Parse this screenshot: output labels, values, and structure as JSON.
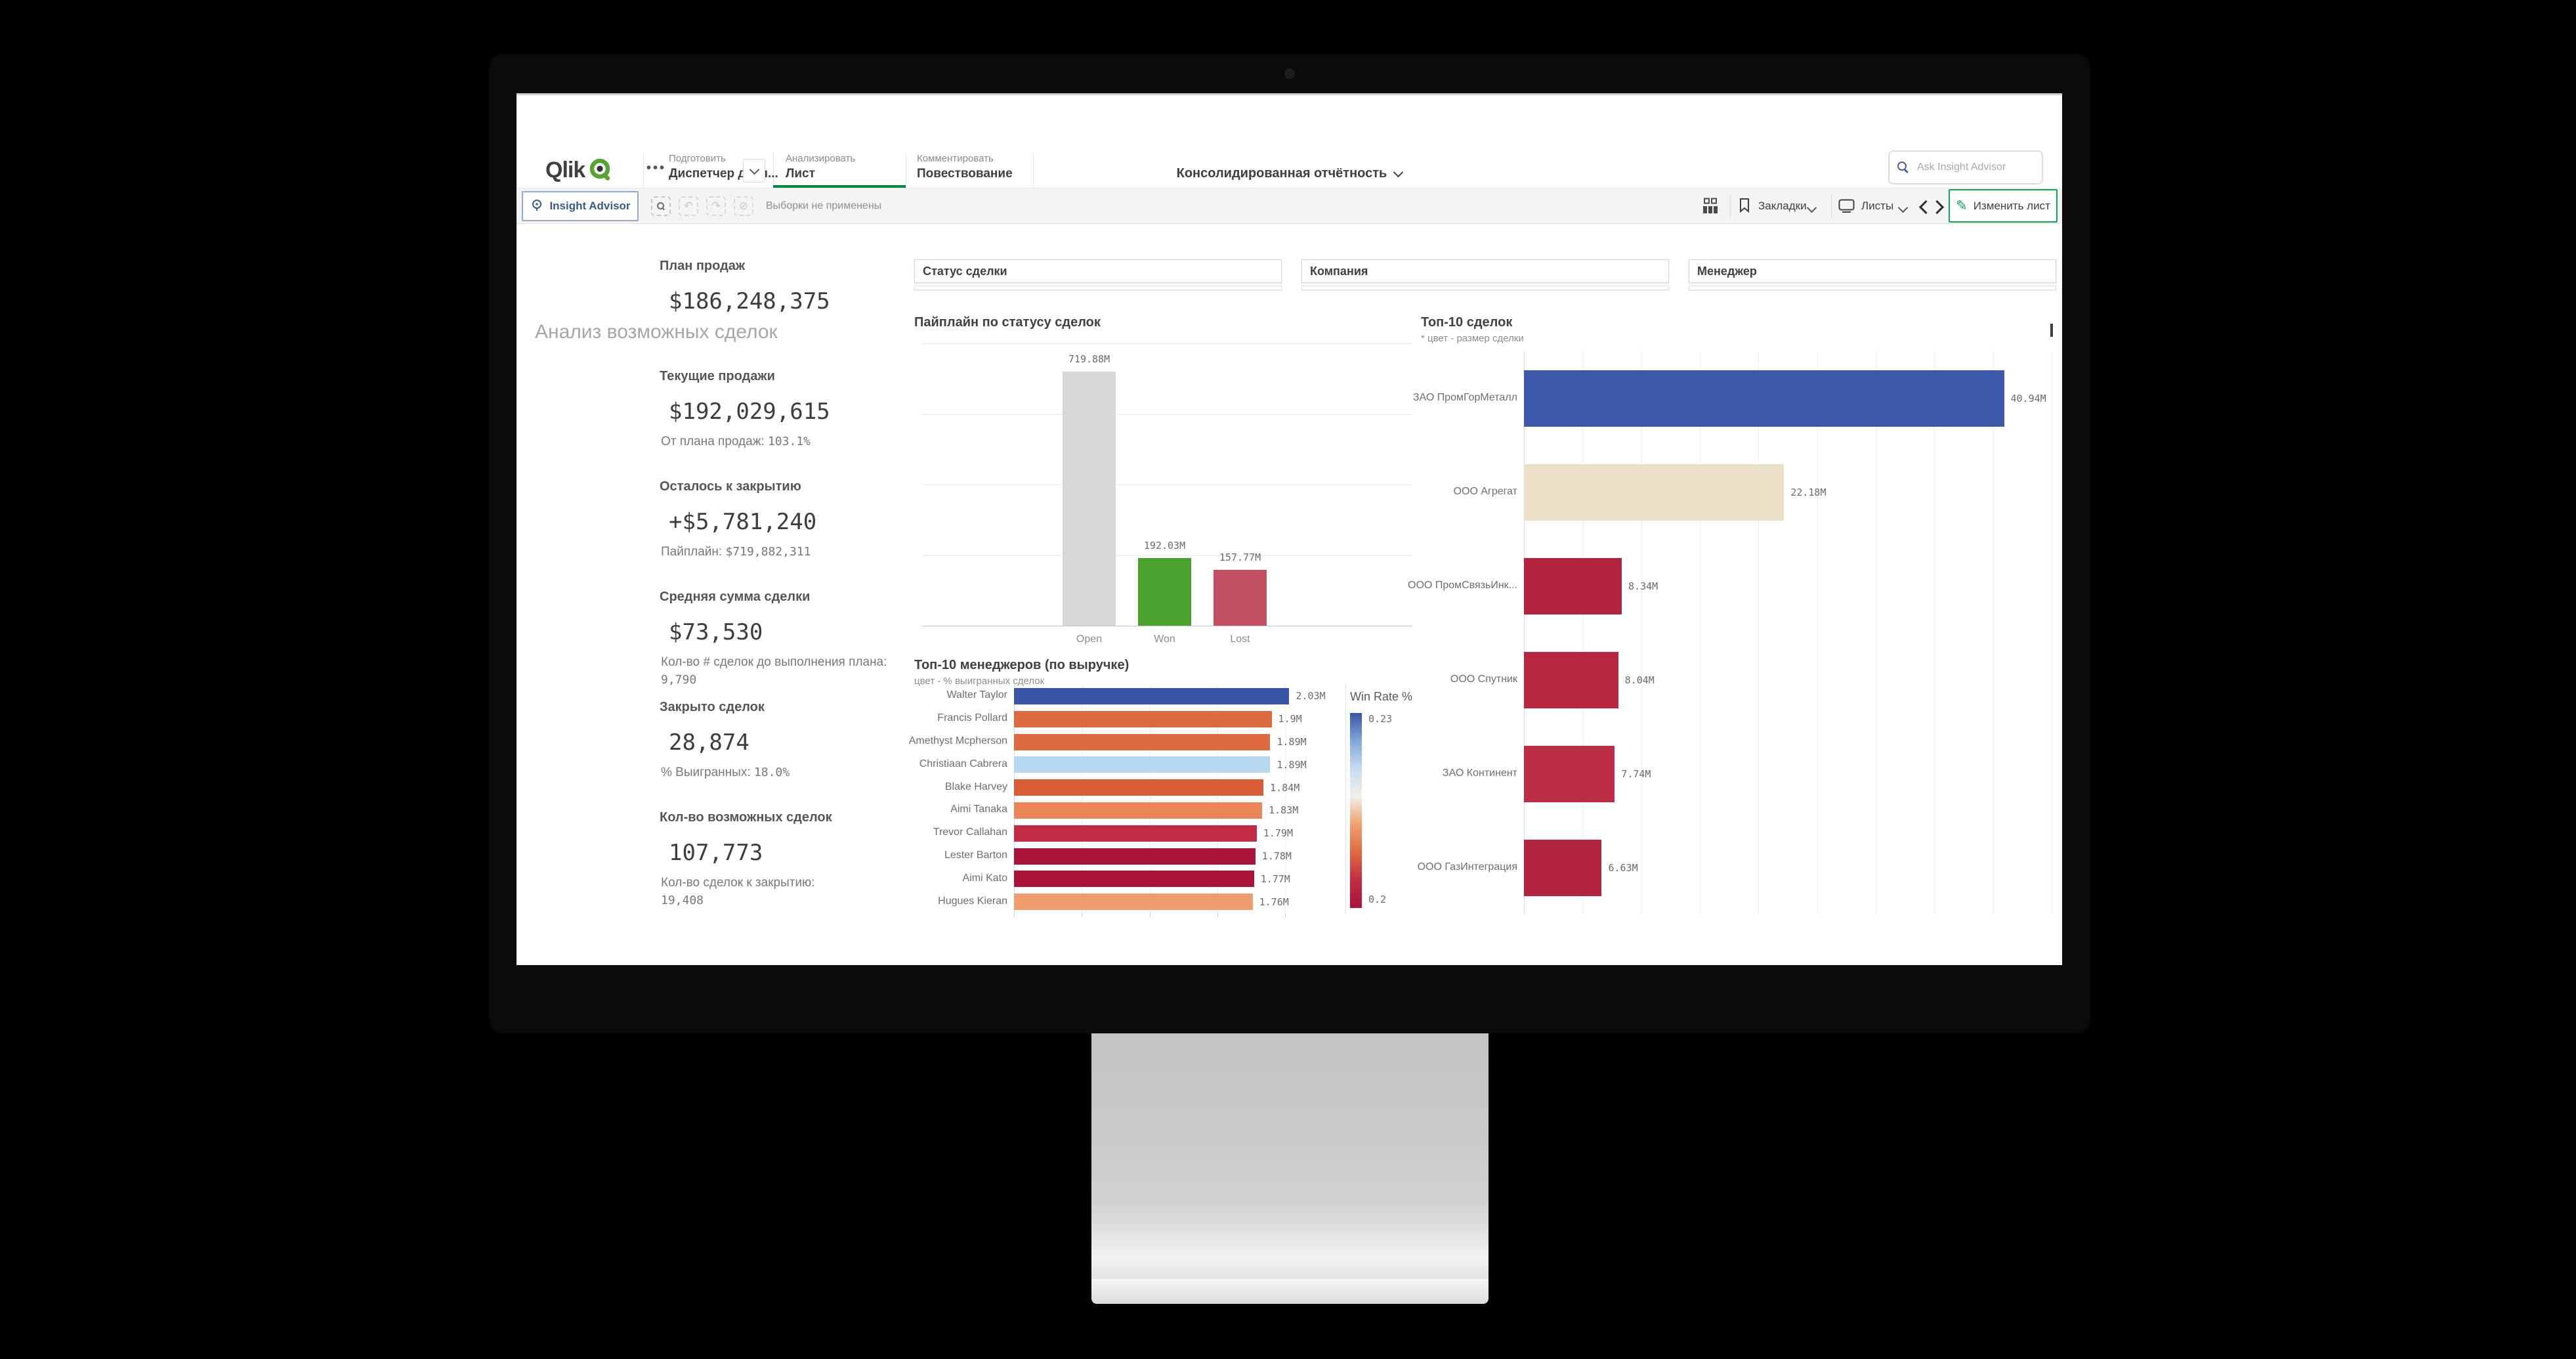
{
  "colors": {
    "brand_green": "#55a532",
    "active_tab_underline": "#00873d",
    "edit_button_border": "#12a457",
    "insight_advisor_border": "#91abd3",
    "toolbar_bg": "#f4f4f4",
    "kpi_value_text": "#3d3d3d",
    "muted_text": "#8c8c8c"
  },
  "header": {
    "logo_text": "Qlik",
    "nav": [
      {
        "section": "Подготовить",
        "item": "Диспетчер данн..."
      },
      {
        "section": "Анализировать",
        "item": "Лист"
      },
      {
        "section": "Комментировать",
        "item": "Повествование"
      }
    ],
    "app_title": "Консолидированная отчётность",
    "search_placeholder": "Ask Insight Advisor"
  },
  "toolbar": {
    "insight_advisor_label": "Insight Advisor",
    "selections_status": "Выборки не применены",
    "bookmarks_label": "Закладки",
    "sheets_label": "Листы",
    "edit_sheet_label": "Изменить лист"
  },
  "sheet": {
    "title": "Анализ возможных сделок",
    "filters": [
      "Статус сделки",
      "Компания",
      "Менеджер"
    ],
    "kpis": [
      {
        "label": "План продаж",
        "value": "$186,248,375",
        "sub_label": "",
        "sub_value": "",
        "sub_two_line": false
      },
      {
        "label": "Текущие продажи",
        "value": "$192,029,615",
        "sub_label": "От плана продаж:",
        "sub_value": "103.1%",
        "sub_two_line": false
      },
      {
        "label": "Осталось к закрытию",
        "value": "+$5,781,240",
        "sub_label": "Пайплайн:",
        "sub_value": "$719,882,311",
        "sub_two_line": false
      },
      {
        "label": "Средняя сумма сделки",
        "value": "$73,530",
        "sub_label": "Кол-во # сделок до выполнения плана:",
        "sub_value": "9,790",
        "sub_two_line": true
      },
      {
        "label": "Закрыто сделок",
        "value": "28,874",
        "sub_label": "% Выигранных:",
        "sub_value": "18.0%",
        "sub_two_line": false
      },
      {
        "label": "Кол-во возможных сделок",
        "value": "107,773",
        "sub_label": "Кол-во сделок к закрытию:",
        "sub_value": "19,408",
        "sub_two_line": true
      }
    ]
  },
  "chart_data": [
    {
      "id": "pipeline_by_status",
      "type": "bar",
      "title": "Пайплайн по статусу сделок",
      "categories": [
        "Open",
        "Won",
        "Lost"
      ],
      "values": [
        719.88,
        192.03,
        157.77
      ],
      "value_labels": [
        "719.88M",
        "192.03M",
        "157.77M"
      ],
      "bar_colors": [
        "#d8d8d8",
        "#4ca22f",
        "#c34f62"
      ],
      "unit": "M",
      "ylim": [
        0,
        800
      ],
      "grid_step": 200,
      "xlabel": "",
      "ylabel": "",
      "legend_position": "none"
    },
    {
      "id": "top10_deals",
      "type": "bar-horizontal",
      "title": "Топ-10 сделок",
      "subtitle": "* цвет - размер сделки",
      "categories": [
        "ЗАО ПромГорМеталл",
        "ООО Агрегат",
        "ООО ПромСвязьИнк...",
        "ООО Спутник",
        "ЗАО Континент",
        "ООО ГазИнтеграция"
      ],
      "values": [
        40.94,
        22.18,
        8.34,
        8.04,
        7.74,
        6.63
      ],
      "value_labels": [
        "40.94M",
        "22.18M",
        "8.34M",
        "8.04M",
        "7.74M",
        "6.63M"
      ],
      "bar_colors": [
        "#3d58a8",
        "#ebdfc8",
        "#b2233e",
        "#b7273f",
        "#bb2d45",
        "#b2233e"
      ],
      "unit": "M",
      "xlim": [
        0,
        45.5
      ],
      "grid_step": 5,
      "scrollable": true,
      "legend_position": "none"
    },
    {
      "id": "top10_managers",
      "type": "bar-horizontal",
      "title": "Топ-10 менеджеров (по выручке)",
      "subtitle": "цвет - % выигранных сделок",
      "categories": [
        "Walter Taylor",
        "Francis Pollard",
        "Amethyst Mcpherson",
        "Christiaan Cabrera",
        "Blake Harvey",
        "Aimi Tanaka",
        "Trevor Callahan",
        "Lester Barton",
        "Aimi Kato",
        "Hugues Kieran"
      ],
      "values": [
        2.03,
        1.9,
        1.89,
        1.89,
        1.84,
        1.83,
        1.79,
        1.78,
        1.77,
        1.76
      ],
      "value_labels": [
        "2.03M",
        "1.9M",
        "1.89M",
        "1.89M",
        "1.84M",
        "1.83M",
        "1.79M",
        "1.78M",
        "1.77M",
        "1.76M"
      ],
      "bar_colors": [
        "#3a55a5",
        "#de6a3f",
        "#de6a3f",
        "#b5d8f0",
        "#d85c35",
        "#e98759",
        "#c22c44",
        "#a81538",
        "#a81538",
        "#ee9b6e"
      ],
      "unit": "M",
      "xlim": [
        0,
        2.42
      ],
      "grid_step": 0.5,
      "legend_position": "right",
      "legend": {
        "title": "Win Rate %",
        "max_label": "0.23",
        "min_label": "0.2",
        "gradient": [
          "#3a55a5",
          "#7fa8d6",
          "#c8dcef",
          "#f3efe7",
          "#eda271",
          "#e06a3e",
          "#c22c44",
          "#a81538"
        ]
      }
    }
  ]
}
